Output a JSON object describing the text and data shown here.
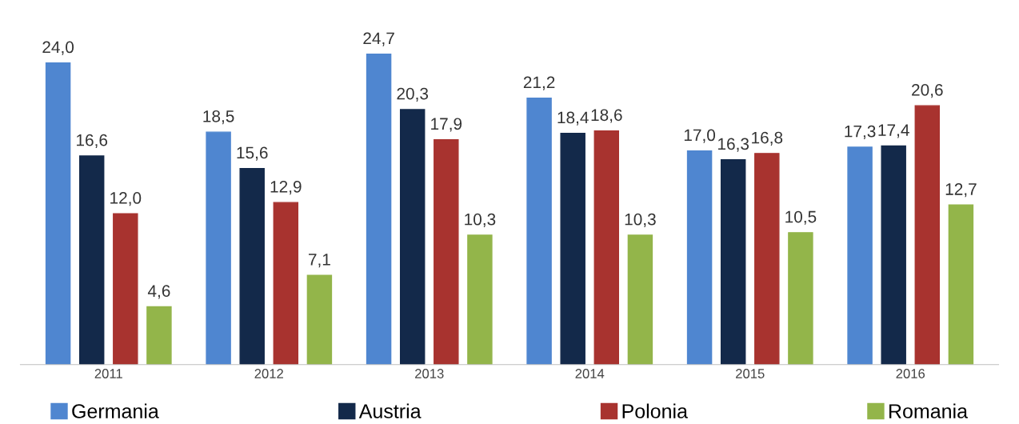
{
  "chart_data": {
    "type": "bar",
    "categories": [
      "2011",
      "2012",
      "2013",
      "2014",
      "2015",
      "2016"
    ],
    "series": [
      {
        "name": "Germania",
        "color": "#4f86d0",
        "values": [
          24.0,
          18.5,
          24.7,
          21.2,
          17.0,
          17.3
        ],
        "value_labels": [
          "24,0",
          "18,5",
          "24,7",
          "21,2",
          "17,0",
          "17,3"
        ]
      },
      {
        "name": "Austria",
        "color": "#13294a",
        "values": [
          16.6,
          15.6,
          20.3,
          18.4,
          16.3,
          17.4
        ],
        "value_labels": [
          "16,6",
          "15,6",
          "20,3",
          "18,4",
          "16,3",
          "17,4"
        ]
      },
      {
        "name": "Polonia",
        "color": "#a8332f",
        "values": [
          12.0,
          12.9,
          17.9,
          18.6,
          16.8,
          20.6
        ],
        "value_labels": [
          "12,0",
          "12,9",
          "17,9",
          "18,6",
          "16,8",
          "20,6"
        ]
      },
      {
        "name": "Romania",
        "color": "#93b54a",
        "values": [
          4.6,
          7.1,
          10.3,
          10.3,
          10.5,
          12.7
        ],
        "value_labels": [
          "4,6",
          "7,1",
          "10,3",
          "10,3",
          "10,5",
          "12,7"
        ]
      }
    ],
    "tick_labels": "x",
    "grid": false,
    "legend": "bottom"
  }
}
